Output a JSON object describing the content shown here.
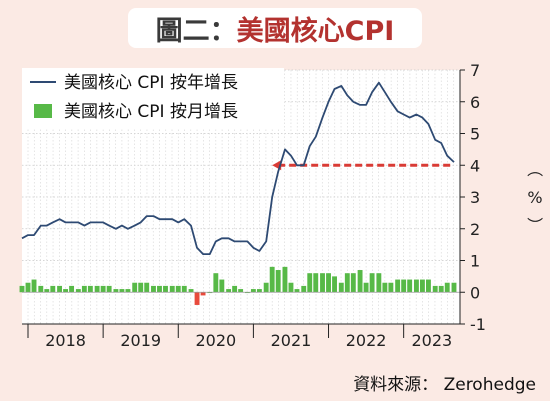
{
  "title": {
    "prefix": "圖二：",
    "main": "美國核心CPI"
  },
  "source": "資料來源： Zerohedge",
  "colors": {
    "line": "#2e4a73",
    "bar": "#57b947",
    "bar_negative": "#e84a3c",
    "reference": "#d93b35",
    "plot_bg": "#ffffff",
    "page_bg": "#fbeae4"
  },
  "chart_data": {
    "type": "line",
    "ylabel": "（%）",
    "ylim": [
      -1,
      7
    ],
    "yticks": [
      "-1",
      "0",
      "1",
      "2",
      "3",
      "4",
      "5",
      "6",
      "7"
    ],
    "xlim": [
      2017.92,
      2023.75
    ],
    "x_labels": [
      "2018",
      "2019",
      "2020",
      "2021",
      "2022",
      "2023"
    ],
    "grid": true,
    "legend_position": "top-left",
    "series": [
      {
        "name": "美國核心 CPI 按年增長",
        "type": "line",
        "x": [
          2017.92,
          2018.0,
          2018.08,
          2018.17,
          2018.25,
          2018.33,
          2018.42,
          2018.5,
          2018.58,
          2018.67,
          2018.75,
          2018.83,
          2018.92,
          2019.0,
          2019.08,
          2019.17,
          2019.25,
          2019.33,
          2019.42,
          2019.5,
          2019.58,
          2019.67,
          2019.75,
          2019.83,
          2019.92,
          2020.0,
          2020.08,
          2020.17,
          2020.25,
          2020.33,
          2020.42,
          2020.5,
          2020.58,
          2020.67,
          2020.75,
          2020.83,
          2020.92,
          2021.0,
          2021.08,
          2021.17,
          2021.25,
          2021.33,
          2021.42,
          2021.5,
          2021.58,
          2021.67,
          2021.75,
          2021.83,
          2021.92,
          2022.0,
          2022.08,
          2022.17,
          2022.25,
          2022.33,
          2022.42,
          2022.5,
          2022.58,
          2022.67,
          2022.75,
          2022.83,
          2022.92,
          2023.0,
          2023.08,
          2023.17,
          2023.25,
          2023.33,
          2023.42,
          2023.5,
          2023.58,
          2023.67
        ],
        "values": [
          1.7,
          1.8,
          1.8,
          2.1,
          2.1,
          2.2,
          2.3,
          2.2,
          2.2,
          2.2,
          2.1,
          2.2,
          2.2,
          2.2,
          2.1,
          2.0,
          2.1,
          2.0,
          2.1,
          2.2,
          2.4,
          2.4,
          2.3,
          2.3,
          2.3,
          2.2,
          2.3,
          2.1,
          1.4,
          1.2,
          1.2,
          1.6,
          1.7,
          1.7,
          1.6,
          1.6,
          1.6,
          1.4,
          1.3,
          1.6,
          3.0,
          3.8,
          4.5,
          4.3,
          4.0,
          4.0,
          4.6,
          4.9,
          5.5,
          6.0,
          6.4,
          6.5,
          6.2,
          6.0,
          5.9,
          5.9,
          6.3,
          6.6,
          6.3,
          6.0,
          5.7,
          5.6,
          5.5,
          5.6,
          5.5,
          5.3,
          4.8,
          4.7,
          4.3,
          4.1
        ]
      },
      {
        "name": "美國核心 CPI 按月增長",
        "type": "bar",
        "x": [
          2017.92,
          2018.0,
          2018.08,
          2018.17,
          2018.25,
          2018.33,
          2018.42,
          2018.5,
          2018.58,
          2018.67,
          2018.75,
          2018.83,
          2018.92,
          2019.0,
          2019.08,
          2019.17,
          2019.25,
          2019.33,
          2019.42,
          2019.5,
          2019.58,
          2019.67,
          2019.75,
          2019.83,
          2019.92,
          2020.0,
          2020.08,
          2020.17,
          2020.25,
          2020.33,
          2020.42,
          2020.5,
          2020.58,
          2020.67,
          2020.75,
          2020.83,
          2020.92,
          2021.0,
          2021.08,
          2021.17,
          2021.25,
          2021.33,
          2021.42,
          2021.5,
          2021.58,
          2021.67,
          2021.75,
          2021.83,
          2021.92,
          2022.0,
          2022.08,
          2022.17,
          2022.25,
          2022.33,
          2022.42,
          2022.5,
          2022.58,
          2022.67,
          2022.75,
          2022.83,
          2022.92,
          2023.0,
          2023.08,
          2023.17,
          2023.25,
          2023.33,
          2023.42,
          2023.5,
          2023.58,
          2023.67
        ],
        "values": [
          0.2,
          0.3,
          0.4,
          0.2,
          0.1,
          0.2,
          0.2,
          0.1,
          0.2,
          0.1,
          0.2,
          0.2,
          0.2,
          0.2,
          0.2,
          0.1,
          0.1,
          0.1,
          0.3,
          0.3,
          0.3,
          0.2,
          0.2,
          0.2,
          0.2,
          0.2,
          0.2,
          0.1,
          -0.4,
          -0.1,
          0.0,
          0.6,
          0.4,
          0.1,
          0.2,
          0.1,
          0.0,
          0.1,
          0.1,
          0.3,
          0.8,
          0.7,
          0.8,
          0.3,
          0.1,
          0.2,
          0.6,
          0.6,
          0.6,
          0.6,
          0.5,
          0.3,
          0.6,
          0.6,
          0.7,
          0.3,
          0.6,
          0.6,
          0.3,
          0.3,
          0.4,
          0.4,
          0.4,
          0.4,
          0.4,
          0.4,
          0.2,
          0.2,
          0.3,
          0.3
        ]
      },
      {
        "name": "",
        "type": "reference",
        "x": [
          2021.25,
          2023.67
        ],
        "values": [
          4.0,
          4.0
        ]
      }
    ]
  }
}
